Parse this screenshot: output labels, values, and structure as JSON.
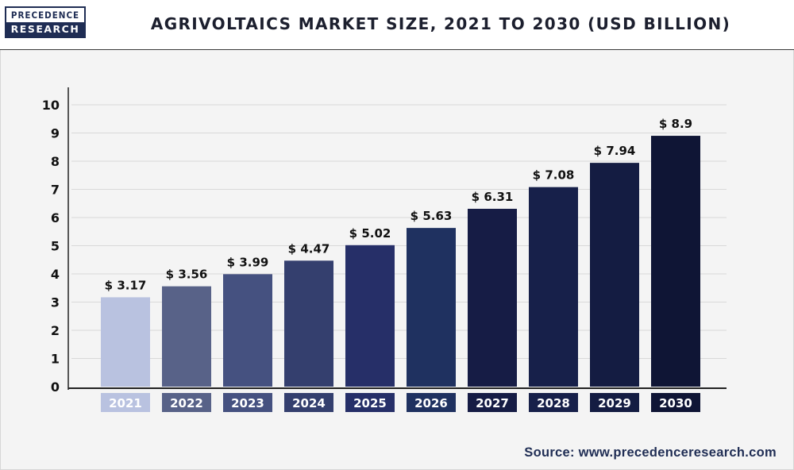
{
  "header": {
    "logo_top": "PRECEDENCE",
    "logo_bottom": "RESEARCH",
    "title": "AGRIVOLTAICS MARKET SIZE, 2021 TO 2030 (USD BILLION)"
  },
  "source": "Source: www.precedenceresearch.com",
  "chart_data": {
    "type": "bar",
    "title": "AGRIVOLTAICS MARKET SIZE, 2021 TO 2030 (USD BILLION)",
    "xlabel": "",
    "ylabel": "",
    "categories": [
      "2021",
      "2022",
      "2023",
      "2024",
      "2025",
      "2026",
      "2027",
      "2028",
      "2029",
      "2030"
    ],
    "values": [
      3.17,
      3.56,
      3.99,
      4.47,
      5.02,
      5.63,
      6.31,
      7.08,
      7.94,
      8.9
    ],
    "value_labels": [
      "$ 3.17",
      "$ 3.56",
      "$ 3.99",
      "$ 4.47",
      "$ 5.02",
      "$ 5.63",
      "$ 6.31",
      "$ 7.08",
      "$ 7.94",
      "$ 8.9"
    ],
    "yticks": [
      "0",
      "1",
      "2",
      "3",
      "4",
      "5",
      "6",
      "7",
      "8",
      "9",
      "10"
    ],
    "ylim": [
      0,
      10
    ],
    "grid": true,
    "legend": "none",
    "colors": [
      "#b9c2e0",
      "#586288",
      "#455180",
      "#343f6e",
      "#262f68",
      "#1f3160",
      "#161c45",
      "#17204a",
      "#141c42",
      "#0f1535"
    ]
  }
}
